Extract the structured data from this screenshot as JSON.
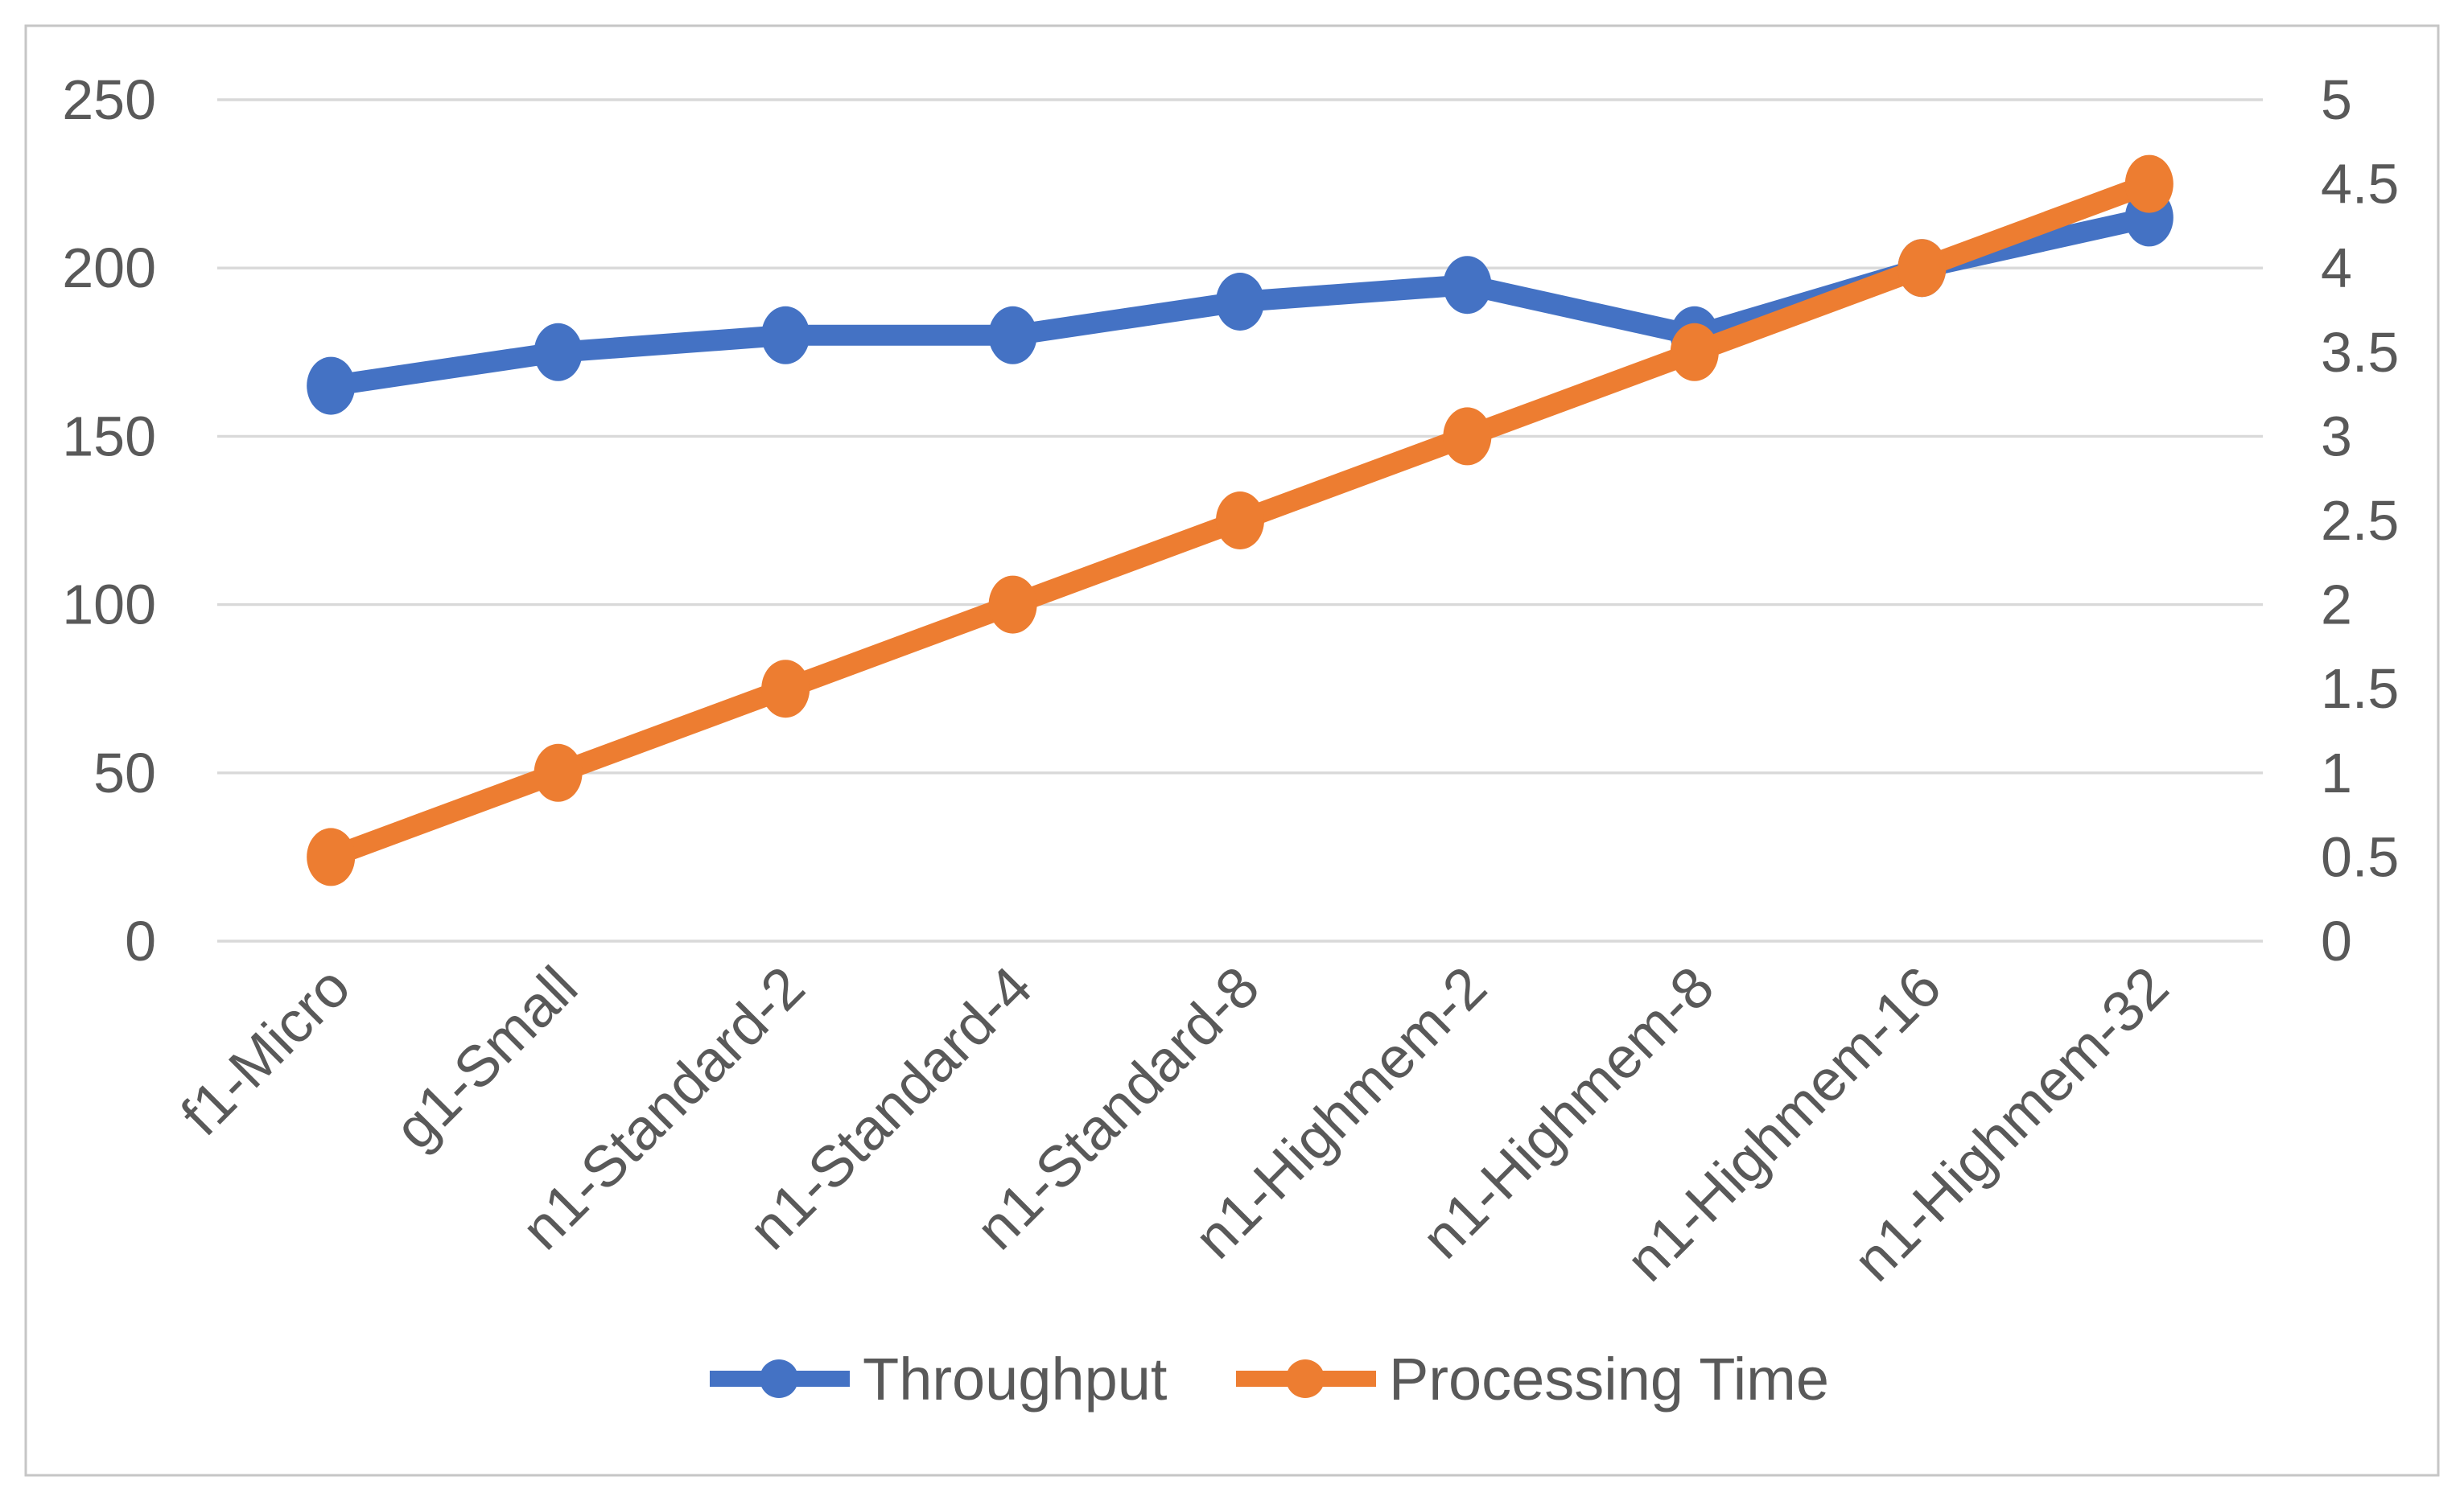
{
  "figure": {
    "background": "#ffffff",
    "border_color": "#c6c6c6",
    "gridline_color": "#d9d9d9",
    "tick_text_color": "#595959"
  },
  "chart_data": {
    "type": "line",
    "title": "",
    "xlabel": "",
    "ylabel": "",
    "grid": true,
    "legend_position": "bottom",
    "categories": [
      "f1-Micro",
      "g1-Small",
      "n1-Standard-2",
      "n1-Standard-4",
      "n1-Standard-8",
      "n1-Highmem-2",
      "n1-Highmem-8",
      "n1-Highmem-16",
      "n1-Highmem-32"
    ],
    "series": [
      {
        "name": "Throughput",
        "axis": "left",
        "color": "#4472C4",
        "values": [
          165,
          175,
          180,
          180,
          190,
          195,
          180,
          200,
          215
        ]
      },
      {
        "name": "Processing Time",
        "axis": "right",
        "color": "#ED7D31",
        "values": [
          0.5,
          1,
          1.5,
          2,
          2.5,
          3,
          3.5,
          4,
          4.5
        ]
      }
    ],
    "left_axis": {
      "range": [
        0,
        250
      ],
      "ticks": [
        "0",
        "50",
        "100",
        "150",
        "200",
        "250"
      ]
    },
    "right_axis": {
      "range": [
        0,
        5
      ],
      "ticks": [
        "0",
        "0.5",
        "1",
        "1.5",
        "2",
        "2.5",
        "3",
        "3.5",
        "4",
        "4.5",
        "5"
      ]
    }
  }
}
